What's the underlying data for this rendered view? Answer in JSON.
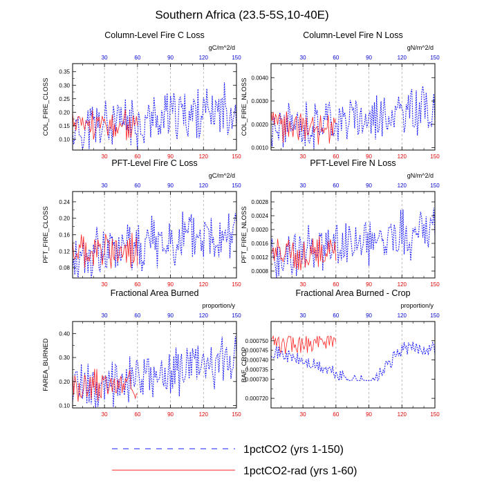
{
  "figure": {
    "title": "Southern Africa (23.5-5S,10-40E)",
    "legend": [
      {
        "label": "1pctCO2 (yrs 1-150)",
        "color": "#1a1aff",
        "style": "dashed"
      },
      {
        "label": "1pctCO2-rad (yrs 1-60)",
        "color": "#ff2222",
        "style": "solid"
      }
    ]
  },
  "chart_data": [
    {
      "type": "line",
      "title": "Column-Level Fire C Loss",
      "units": "gC/m^2/d",
      "ylabel": "COL_FIRE_CLOSS",
      "xlim": [
        1,
        150
      ],
      "ylim": [
        0.06,
        0.38
      ],
      "yticks": [
        0.1,
        0.15,
        0.2,
        0.25,
        0.3,
        0.35
      ],
      "ytick_labels": [
        "0.10",
        "0.15",
        "0.20",
        "0.25",
        "0.30",
        "0.35"
      ],
      "xticks": [
        30,
        60,
        90,
        120,
        150
      ],
      "series": [
        {
          "name": "1pctCO2 (yrs 1-150)",
          "color": "#1a1aff",
          "style": "dashed",
          "base": 0.13,
          "trend": 0.09,
          "amp": 0.085,
          "seed": 11
        },
        {
          "name": "1pctCO2-rad (yrs 1-60)",
          "color": "#ff2222",
          "style": "solid",
          "base": 0.15,
          "trend": 0.01,
          "amp": 0.05,
          "seed": 23
        }
      ]
    },
    {
      "type": "line",
      "title": "Column-Level Fire N Loss",
      "units": "gN/m^2/d",
      "ylabel": "COL_FIRE_NLOSS",
      "xlim": [
        1,
        150
      ],
      "ylim": [
        0.0009,
        0.0046
      ],
      "yticks": [
        0.001,
        0.002,
        0.003,
        0.004
      ],
      "ytick_labels": [
        "0.0010",
        "0.0020",
        "0.0030",
        "0.0040"
      ],
      "xticks": [
        30,
        60,
        90,
        120,
        150
      ],
      "series": [
        {
          "name": "1pctCO2 (yrs 1-150)",
          "color": "#1a1aff",
          "style": "dashed",
          "base": 0.0018,
          "trend": 0.0009,
          "amp": 0.0009,
          "seed": 31
        },
        {
          "name": "1pctCO2-rad (yrs 1-60)",
          "color": "#ff2222",
          "style": "solid",
          "base": 0.0019,
          "trend": 0.0001,
          "amp": 0.0006,
          "seed": 37
        }
      ]
    },
    {
      "type": "line",
      "title": "PFT-Level Fire C Loss",
      "units": "gC/m^2/d",
      "ylabel": "PFT_FIRE_CLOSS",
      "xlim": [
        1,
        150
      ],
      "ylim": [
        0.055,
        0.265
      ],
      "yticks": [
        0.08,
        0.12,
        0.16,
        0.2,
        0.24
      ],
      "ytick_labels": [
        "0.08",
        "0.12",
        "0.16",
        "0.20",
        "0.24"
      ],
      "xticks": [
        30,
        60,
        90,
        120,
        150
      ],
      "series": [
        {
          "name": "1pctCO2 (yrs 1-150)",
          "color": "#1a1aff",
          "style": "dashed",
          "base": 0.1,
          "trend": 0.075,
          "amp": 0.06,
          "seed": 41
        },
        {
          "name": "1pctCO2-rad (yrs 1-60)",
          "color": "#ff2222",
          "style": "solid",
          "base": 0.12,
          "trend": 0.005,
          "amp": 0.04,
          "seed": 43
        }
      ]
    },
    {
      "type": "line",
      "title": "PFT-Level Fire N Loss",
      "units": "gN/m^2/d",
      "ylabel": "PFT_FIRE_NLOSS",
      "xlim": [
        1,
        150
      ],
      "ylim": [
        0.0006,
        0.0031
      ],
      "yticks": [
        0.0008,
        0.0012,
        0.0016,
        0.002,
        0.0024,
        0.0028
      ],
      "ytick_labels": [
        "0.0008",
        "0.0012",
        "0.0016",
        "0.0020",
        "0.0024",
        "0.0028"
      ],
      "xticks": [
        30,
        60,
        90,
        120,
        150
      ],
      "series": [
        {
          "name": "1pctCO2 (yrs 1-150)",
          "color": "#1a1aff",
          "style": "dashed",
          "base": 0.0012,
          "trend": 0.0008,
          "amp": 0.0006,
          "seed": 53
        },
        {
          "name": "1pctCO2-rad (yrs 1-60)",
          "color": "#ff2222",
          "style": "solid",
          "base": 0.0013,
          "trend": 0.0001,
          "amp": 0.0004,
          "seed": 59
        }
      ]
    },
    {
      "type": "line",
      "title": "Fractional Area Burned",
      "units": "proportion/y",
      "ylabel": "FAREA_BURNED",
      "xlim": [
        1,
        150
      ],
      "ylim": [
        0.09,
        0.45
      ],
      "yticks": [
        0.1,
        0.2,
        0.3,
        0.4
      ],
      "ytick_labels": [
        "0.10",
        "0.20",
        "0.30",
        "0.40"
      ],
      "xticks": [
        30,
        60,
        90,
        120,
        150
      ],
      "series": [
        {
          "name": "1pctCO2 (yrs 1-150)",
          "color": "#1a1aff",
          "style": "dashed",
          "base": 0.17,
          "trend": 0.11,
          "amp": 0.09,
          "seed": 61
        },
        {
          "name": "1pctCO2-rad (yrs 1-60)",
          "color": "#ff2222",
          "style": "solid",
          "base": 0.18,
          "trend": 0.01,
          "amp": 0.06,
          "seed": 67
        }
      ]
    },
    {
      "type": "line",
      "title": "Fractional Area Burned - Crop",
      "units": "proportion/y",
      "ylabel": "BAF_CROP",
      "xlim": [
        1,
        150
      ],
      "ylim": [
        0.000715,
        0.00076
      ],
      "yticks": [
        0.00072,
        0.00073,
        0.00074,
        0.00075
      ],
      "ytick_labels": [
        "0.000720",
        "0.000730",
        "0.000740",
        "0.000750"
      ],
      "extra_ytick_labels": [
        "0.000745",
        "0.000735"
      ],
      "xticks": [
        30,
        60,
        90,
        120,
        150
      ],
      "series": [
        {
          "name": "1pctCO2 (yrs 1-150)",
          "color": "#1a1aff",
          "style": "dashed",
          "profile": "crop",
          "amp": 3.5e-06,
          "seed": 71
        },
        {
          "name": "1pctCO2-rad (yrs 1-60)",
          "color": "#ff2222",
          "style": "solid",
          "base": 0.000748,
          "trend": 4e-06,
          "amp": 5e-06,
          "seed": 73
        }
      ]
    }
  ]
}
